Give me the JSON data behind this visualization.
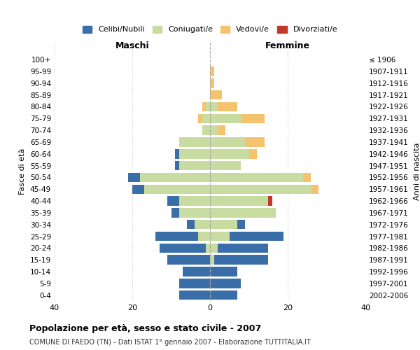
{
  "age_groups": [
    "0-4",
    "5-9",
    "10-14",
    "15-19",
    "20-24",
    "25-29",
    "30-34",
    "35-39",
    "40-44",
    "45-49",
    "50-54",
    "55-59",
    "60-64",
    "65-69",
    "70-74",
    "75-79",
    "80-84",
    "85-89",
    "90-94",
    "95-99",
    "100+"
  ],
  "birth_years": [
    "2002-2006",
    "1997-2001",
    "1992-1996",
    "1987-1991",
    "1982-1986",
    "1977-1981",
    "1972-1976",
    "1967-1971",
    "1962-1966",
    "1957-1961",
    "1952-1956",
    "1947-1951",
    "1942-1946",
    "1937-1941",
    "1932-1936",
    "1927-1931",
    "1922-1926",
    "1917-1921",
    "1912-1916",
    "1907-1911",
    "≤ 1906"
  ],
  "colors": {
    "celibi": "#3a6ea8",
    "coniugati": "#c8dba0",
    "vedovi": "#f5c36e",
    "divorziati": "#c0392b"
  },
  "maschi": {
    "coniugati": [
      0,
      0,
      0,
      0,
      1,
      3,
      4,
      8,
      8,
      17,
      18,
      8,
      8,
      8,
      2,
      2,
      1,
      0,
      0,
      0,
      0
    ],
    "celibi": [
      8,
      8,
      7,
      11,
      12,
      11,
      2,
      2,
      3,
      3,
      3,
      1,
      1,
      0,
      0,
      0,
      0,
      0,
      0,
      0,
      0
    ],
    "vedovi": [
      0,
      0,
      0,
      0,
      0,
      0,
      0,
      0,
      0,
      0,
      0,
      0,
      0,
      0,
      0,
      1,
      1,
      0,
      0,
      0,
      0
    ],
    "divorziati": [
      0,
      0,
      0,
      0,
      0,
      0,
      0,
      0,
      0,
      0,
      0,
      0,
      0,
      0,
      0,
      0,
      0,
      0,
      0,
      0,
      0
    ]
  },
  "femmine": {
    "coniugate": [
      0,
      0,
      0,
      1,
      2,
      5,
      7,
      17,
      15,
      26,
      24,
      8,
      10,
      9,
      2,
      8,
      2,
      0,
      0,
      0,
      0
    ],
    "nubili": [
      7,
      8,
      7,
      14,
      13,
      14,
      2,
      0,
      0,
      0,
      0,
      0,
      0,
      0,
      0,
      0,
      0,
      0,
      0,
      0,
      0
    ],
    "vedove": [
      0,
      0,
      0,
      0,
      0,
      0,
      0,
      0,
      0,
      2,
      2,
      0,
      2,
      5,
      2,
      6,
      5,
      3,
      1,
      1,
      0
    ],
    "divorziate": [
      0,
      0,
      0,
      0,
      0,
      0,
      0,
      0,
      1,
      0,
      0,
      0,
      0,
      0,
      0,
      0,
      0,
      0,
      0,
      0,
      0
    ]
  },
  "xlim": [
    -40,
    40
  ],
  "xticks": [
    -40,
    -20,
    0,
    20,
    40
  ],
  "xtick_labels": [
    "40",
    "20",
    "0",
    "20",
    "40"
  ],
  "title": "Popolazione per età, sesso e stato civile - 2007",
  "subtitle": "COMUNE DI FAEDO (TN) - Dati ISTAT 1° gennaio 2007 - Elaborazione TUTTITALIA.IT",
  "ylabel_left": "Fasce di età",
  "ylabel_right": "Anni di nascita",
  "maschi_label": "Maschi",
  "femmine_label": "Femmine",
  "legend_labels": [
    "Celibi/Nubili",
    "Coniugati/e",
    "Vedovi/e",
    "Divorziati/e"
  ],
  "background_color": "#ffffff",
  "grid_color": "#cccccc"
}
